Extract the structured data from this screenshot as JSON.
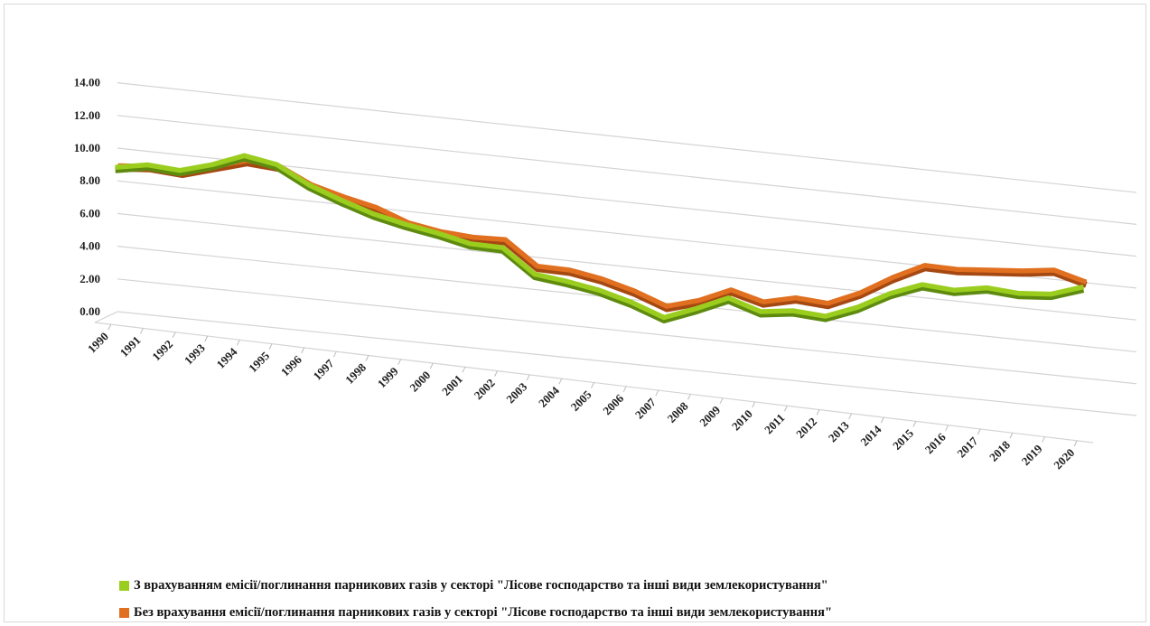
{
  "chart_data": {
    "type": "line",
    "view": "3d",
    "title": "",
    "xlabel": "",
    "ylabel": "",
    "ylim": [
      0,
      14
    ],
    "yticks": [
      "0.00",
      "2.00",
      "4.00",
      "6.00",
      "8.00",
      "10.00",
      "12.00",
      "14.00"
    ],
    "grid": true,
    "legend_position": "bottom",
    "categories": [
      "1990",
      "1991",
      "1992",
      "1993",
      "1994",
      "1995",
      "1996",
      "1997",
      "1998",
      "1999",
      "2000",
      "2001",
      "2002",
      "2003",
      "2004",
      "2005",
      "2006",
      "2007",
      "2008",
      "2009",
      "2010",
      "2011",
      "2012",
      "2013",
      "2014",
      "2015",
      "2016",
      "2017",
      "2018",
      "2019",
      "2020"
    ],
    "series": [
      {
        "name": "З врахуванням емісії/поглинання парникових газів у секторі \"Лісове господарство та інші види землекористування\"",
        "color": "#9acd1e",
        "values": [
          9.4,
          9.8,
          9.7,
          10.3,
          11.1,
          10.8,
          9.8,
          9.1,
          8.5,
          8.1,
          7.8,
          7.4,
          7.4,
          6.0,
          5.8,
          5.5,
          5.0,
          4.3,
          5.1,
          6.0,
          5.4,
          5.7,
          5.6,
          6.4,
          7.5,
          8.3,
          8.2,
          8.6,
          8.5,
          8.7,
          9.4
        ]
      },
      {
        "name": "Без врахування емісії/поглинання парникових газів у секторі \"Лісове господарство та інші види землекористування\"",
        "color": "#e07020",
        "values": [
          9.4,
          9.6,
          9.5,
          10.1,
          10.7,
          10.6,
          9.7,
          9.2,
          8.8,
          8.1,
          7.8,
          7.7,
          7.8,
          6.4,
          6.4,
          6.1,
          5.6,
          4.9,
          5.5,
          6.4,
          5.9,
          6.4,
          6.3,
          7.2,
          8.4,
          9.4,
          9.4,
          9.6,
          9.8,
          10.1,
          9.6
        ]
      }
    ]
  }
}
